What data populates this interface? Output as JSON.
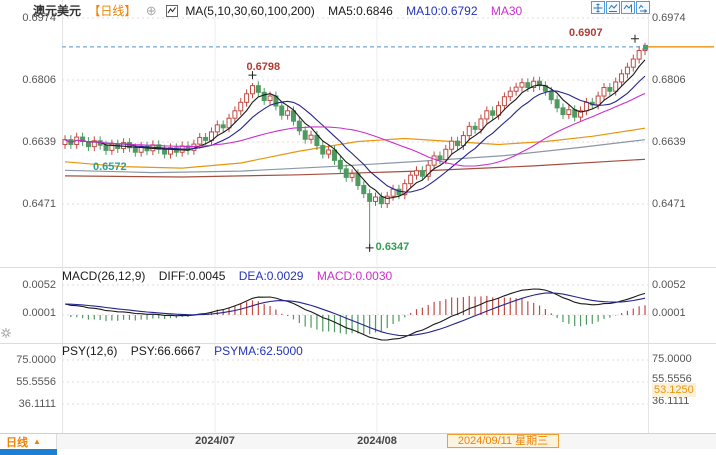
{
  "header": {
    "title": "澳元美元",
    "period_tag": "【日线】",
    "ma_legend": "MA(5,10,30,60,100,200)",
    "ma5_label": "MA5:0.6846",
    "ma10_label": "MA10:0.6792",
    "ma30_label": "MA30"
  },
  "toolbar": {
    "buttons": [
      "crosshair",
      "scale-axis",
      "pan-chart",
      "go-latest"
    ]
  },
  "macd_header": {
    "name": "MACD(26,12,9)",
    "diff": "DIFF:0.0045",
    "dea": "DEA:0.0029",
    "macd": "MACD:0.0030"
  },
  "psy_header": {
    "name": "PSY(12,6)",
    "psy": "PSY:66.6667",
    "psyma": "PSYMA:62.5000"
  },
  "bottom_bar": {
    "tab": "日线",
    "dates": [
      {
        "label": "2024/07",
        "x": 215
      },
      {
        "label": "2024/08",
        "x": 377
      }
    ],
    "highlight_date": "2024/09/11 星期三"
  },
  "colors": {
    "accent_orange": "#f08200",
    "candle_up": "#c24a42",
    "candle_down": "#4e9a60",
    "ma5": "#1a1a1a",
    "ma10": "#24248f",
    "ma30": "#cc2fcc",
    "ma60": "#e8960c",
    "ma100": "#8a97a8",
    "ma200": "#a34f3f",
    "price_dash": "#4f94cd",
    "axis_marker_orange": "#f0a030",
    "annotation_red": "#b23c32",
    "annotation_green": "#2f9e4f",
    "annotation_teal": "#2aa198",
    "tab_indicator_blue": "#1b7fd4",
    "macd_up": "#c24a42",
    "macd_down": "#4e9a60",
    "diff_line": "#1a1a1a",
    "dea_line": "#24248f",
    "psy_line": "#1a1a1a",
    "psyma_line": "#24418f"
  },
  "chart_data": [
    {
      "type": "candlestick",
      "symbol": "澳元美元",
      "period": "日线",
      "y_ticks": [
        {
          "label": "0.6974",
          "price": 0.6974
        },
        {
          "label": "0.6806",
          "price": 0.6806
        },
        {
          "label": "0.6639",
          "price": 0.6639
        },
        {
          "label": "0.6471",
          "price": 0.6471
        }
      ],
      "x_ticks": [
        {
          "label": "2024/07",
          "x": 215
        },
        {
          "label": "2024/08",
          "x": 377
        }
      ],
      "highlight_x_label": "2024/09/11 星期三",
      "candles": {
        "first_open": 0.6632,
        "wick": 0.0012,
        "closes": [
          0.6645,
          0.6632,
          0.6652,
          0.664,
          0.6626,
          0.6642,
          0.663,
          0.6616,
          0.6633,
          0.6621,
          0.6637,
          0.6623,
          0.6611,
          0.6627,
          0.6615,
          0.6631,
          0.6619,
          0.6606,
          0.6623,
          0.6611,
          0.6628,
          0.6616,
          0.6633,
          0.6651,
          0.6643,
          0.6666,
          0.6685,
          0.6677,
          0.6703,
          0.6723,
          0.6746,
          0.6769,
          0.6791,
          0.6773,
          0.6751,
          0.6763,
          0.6736,
          0.6711,
          0.6723,
          0.6695,
          0.6669,
          0.6646,
          0.6657,
          0.6629,
          0.6606,
          0.6617,
          0.6589,
          0.6566,
          0.6543,
          0.6553,
          0.6521,
          0.6499,
          0.6478,
          0.649,
          0.6472,
          0.6492,
          0.6511,
          0.6496,
          0.6526,
          0.6549,
          0.6561,
          0.6546,
          0.6576,
          0.6601,
          0.6591,
          0.6619,
          0.6641,
          0.6629,
          0.6656,
          0.6681,
          0.6673,
          0.6701,
          0.6723,
          0.6711,
          0.6737,
          0.6761,
          0.6776,
          0.6787,
          0.6799,
          0.6786,
          0.6803,
          0.6791,
          0.6776,
          0.6753,
          0.6731,
          0.6713,
          0.6726,
          0.6706,
          0.6723,
          0.6746,
          0.6739,
          0.6763,
          0.6786,
          0.6776,
          0.6801,
          0.6823,
          0.6841,
          0.6863,
          0.6886,
          0.6891
        ],
        "overrides": {
          "32": {
            "h": 0.6798
          },
          "52": {
            "l": 0.6347
          },
          "99": {
            "h": 0.6907
          }
        }
      },
      "ma_fast": [
        {
          "period": 5,
          "color": "#1a1a1a"
        },
        {
          "period": 10,
          "color": "#24248f"
        },
        {
          "period": 30,
          "color": "#cc2fcc"
        }
      ],
      "ma_slow": [
        {
          "name": "MA60",
          "color": "#e8960c",
          "points": [
            [
              0,
              0.6585
            ],
            [
              10,
              0.6572
            ],
            [
              20,
              0.6568
            ],
            [
              30,
              0.6582
            ],
            [
              40,
              0.6614
            ],
            [
              50,
              0.664
            ],
            [
              58,
              0.6648
            ],
            [
              66,
              0.664
            ],
            [
              74,
              0.6632
            ],
            [
              82,
              0.664
            ],
            [
              90,
              0.6654
            ],
            [
              99,
              0.6676
            ]
          ]
        },
        {
          "name": "MA100",
          "color": "#8a97a8",
          "points": [
            [
              0,
              0.6562
            ],
            [
              15,
              0.6556
            ],
            [
              30,
              0.656
            ],
            [
              45,
              0.6572
            ],
            [
              60,
              0.6586
            ],
            [
              75,
              0.6602
            ],
            [
              88,
              0.6624
            ],
            [
              99,
              0.6645
            ]
          ]
        },
        {
          "name": "MA200",
          "color": "#a34f3f",
          "points": [
            [
              0,
              0.6547
            ],
            [
              20,
              0.6544
            ],
            [
              40,
              0.655
            ],
            [
              60,
              0.656
            ],
            [
              80,
              0.6574
            ],
            [
              99,
              0.6592
            ]
          ]
        }
      ],
      "annotations": [
        {
          "text": "0.6798",
          "price": 0.6798,
          "index": 32,
          "color": "#b23c32",
          "cross": true,
          "cross_dx": 0,
          "cross_dy": -8,
          "text_dx": -6,
          "text_dy": -22
        },
        {
          "text": "0.6907",
          "price": 0.6907,
          "index": 99,
          "color": "#b23c32",
          "cross": true,
          "cross_dx": -10,
          "cross_dy": -4,
          "text_dx": -76,
          "text_dy": -16
        },
        {
          "text": "0.6347",
          "price": 0.6347,
          "index": 52,
          "color": "#2f9e4f",
          "cross": true,
          "cross_dx": 0,
          "cross_dy": -2,
          "text_dx": 6,
          "text_dy": -9
        },
        {
          "text": "0.6572",
          "price": 0.6572,
          "x": 93,
          "color": "#2aa198",
          "cross": false,
          "text_dx": 0,
          "text_dy": -6
        }
      ],
      "price_line": {
        "value": 0.6896,
        "dash_color": "#4f94cd",
        "axis_color": "#f0a030",
        "marker_color": "#3f9e7d"
      }
    },
    {
      "type": "macd",
      "title": "MACD(26,12,9)",
      "params": [
        26,
        12,
        9
      ],
      "values": {
        "diff": 0.0045,
        "dea": 0.0029,
        "macd": 0.003
      },
      "y_ticks": [
        {
          "label": "0.0052",
          "v": 0.0052
        },
        {
          "label": "0.0001",
          "v": 0.0001
        }
      ]
    },
    {
      "type": "psy",
      "title": "PSY(12,6)",
      "params": [
        12,
        6
      ],
      "values": {
        "psy": 66.6667,
        "psyma": 62.5
      },
      "y_ticks": [
        {
          "label": "75.0000",
          "v": 75
        },
        {
          "label": "55.5556",
          "v": 55.5556
        },
        {
          "label": "36.1111",
          "v": 36.1111
        }
      ],
      "right_extra": {
        "label": "53.1250",
        "v": 53.125
      }
    }
  ]
}
